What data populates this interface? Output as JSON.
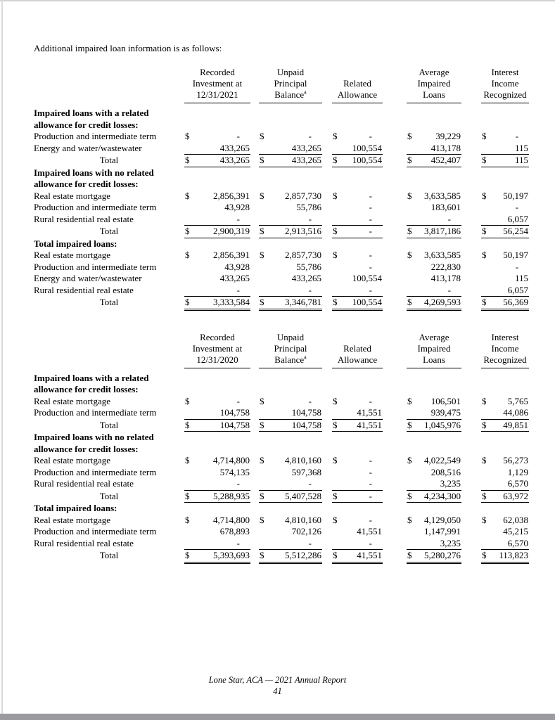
{
  "page": {
    "intro_text": "Additional impaired loan information is as follows:",
    "footer": {
      "report_title": "Lone Star, ACA — 2021 Annual Report",
      "page_number": "41"
    },
    "colors": {
      "paper": "#ffffff",
      "bottom_bar": "#9b9b9f",
      "text": "#000000"
    }
  },
  "tables": [
    {
      "columns": [
        {
          "lines": [
            "Recorded",
            "Investment at",
            "12/31/2021"
          ]
        },
        {
          "lines": [
            "Unpaid",
            "Principal",
            "Balance"
          ],
          "sup": "a"
        },
        {
          "lines": [
            "Related",
            "Allowance"
          ]
        },
        {
          "lines": [
            "Average",
            "Impaired",
            "Loans"
          ]
        },
        {
          "lines": [
            "Interest",
            "Income",
            "Recognized"
          ]
        }
      ],
      "sections": [
        {
          "heading_lines": [
            "Impaired loans with a related",
            "allowance for credit losses:"
          ],
          "rows": [
            {
              "label": "Production and intermediate term",
              "dollar": true,
              "values": [
                "-",
                "-",
                "-",
                "39,229",
                "-"
              ]
            },
            {
              "label": "Energy and water/wastewater",
              "values": [
                "433,265",
                "433,265",
                "100,554",
                "413,178",
                "115"
              ]
            }
          ],
          "total_row": {
            "label": "Total",
            "dollar": true,
            "grand": false,
            "values": [
              "433,265",
              "433,265",
              "100,554",
              "452,407",
              "115"
            ]
          }
        },
        {
          "heading_lines": [
            "Impaired loans with no related",
            "allowance for credit losses:"
          ],
          "rows": [
            {
              "label": "Real estate mortgage",
              "dollar": true,
              "values": [
                "2,856,391",
                "2,857,730",
                "-",
                "3,633,585",
                "50,197"
              ]
            },
            {
              "label": "Production and intermediate term",
              "values": [
                "43,928",
                "55,786",
                "-",
                "183,601",
                "-"
              ]
            },
            {
              "label": "Rural residential real estate",
              "values": [
                "-",
                "-",
                "-",
                "-",
                "6,057"
              ]
            }
          ],
          "total_row": {
            "label": "Total",
            "dollar": true,
            "grand": false,
            "values": [
              "2,900,319",
              "2,913,516",
              "-",
              "3,817,186",
              "56,254"
            ]
          }
        },
        {
          "heading_lines": [
            "Total impaired loans:"
          ],
          "rows": [
            {
              "label": "Real estate mortgage",
              "dollar": true,
              "values": [
                "2,856,391",
                "2,857,730",
                "-",
                "3,633,585",
                "50,197"
              ]
            },
            {
              "label": "Production and intermediate term",
              "values": [
                "43,928",
                "55,786",
                "-",
                "222,830",
                "-"
              ]
            },
            {
              "label": "Energy and water/wastewater",
              "values": [
                "433,265",
                "433,265",
                "100,554",
                "413,178",
                "115"
              ]
            },
            {
              "label": "Rural residential real estate",
              "values": [
                "-",
                "-",
                "-",
                "-",
                "6,057"
              ]
            }
          ],
          "total_row": {
            "label": "Total",
            "dollar": true,
            "grand": true,
            "values": [
              "3,333,584",
              "3,346,781",
              "100,554",
              "4,269,593",
              "56,369"
            ]
          }
        }
      ]
    },
    {
      "columns": [
        {
          "lines": [
            "Recorded",
            "Investment at",
            "12/31/2020"
          ]
        },
        {
          "lines": [
            "Unpaid",
            "Principal",
            "Balance"
          ],
          "sup": "a"
        },
        {
          "lines": [
            "Related",
            "Allowance"
          ]
        },
        {
          "lines": [
            "Average",
            "Impaired",
            "Loans"
          ]
        },
        {
          "lines": [
            "Interest",
            "Income",
            "Recognized"
          ]
        }
      ],
      "sections": [
        {
          "heading_lines": [
            "Impaired loans with a related",
            "allowance for credit losses:"
          ],
          "rows": [
            {
              "label": "Real estate mortgage",
              "dollar": true,
              "values": [
                "-",
                "-",
                "-",
                "106,501",
                "5,765"
              ]
            },
            {
              "label": "Production and intermediate term",
              "values": [
                "104,758",
                "104,758",
                "41,551",
                "939,475",
                "44,086"
              ]
            }
          ],
          "total_row": {
            "label": "Total",
            "dollar": true,
            "grand": false,
            "values": [
              "104,758",
              "104,758",
              "41,551",
              "1,045,976",
              "49,851"
            ]
          }
        },
        {
          "heading_lines": [
            "Impaired loans with no related",
            "allowance for credit losses:"
          ],
          "rows": [
            {
              "label": "Real estate mortgage",
              "dollar": true,
              "values": [
                "4,714,800",
                "4,810,160",
                "-",
                "4,022,549",
                "56,273"
              ]
            },
            {
              "label": "Production and intermediate term",
              "values": [
                "574,135",
                "597,368",
                "-",
                "208,516",
                "1,129"
              ]
            },
            {
              "label": "Rural residential real estate",
              "values": [
                "-",
                "-",
                "-",
                "3,235",
                "6,570"
              ]
            }
          ],
          "total_row": {
            "label": "Total",
            "dollar": true,
            "grand": false,
            "values": [
              "5,288,935",
              "5,407,528",
              "-",
              "4,234,300",
              "63,972"
            ]
          }
        },
        {
          "heading_lines": [
            "Total impaired loans:"
          ],
          "rows": [
            {
              "label": "Real estate mortgage",
              "dollar": true,
              "values": [
                "4,714,800",
                "4,810,160",
                "-",
                "4,129,050",
                "62,038"
              ]
            },
            {
              "label": "Production and intermediate term",
              "values": [
                "678,893",
                "702,126",
                "41,551",
                "1,147,991",
                "45,215"
              ]
            },
            {
              "label": "Rural residential real estate",
              "values": [
                "-",
                "-",
                "-",
                "3,235",
                "6,570"
              ]
            }
          ],
          "total_row": {
            "label": "Total",
            "dollar": true,
            "grand": true,
            "values": [
              "5,393,693",
              "5,512,286",
              "41,551",
              "5,280,276",
              "113,823"
            ]
          }
        }
      ]
    }
  ]
}
